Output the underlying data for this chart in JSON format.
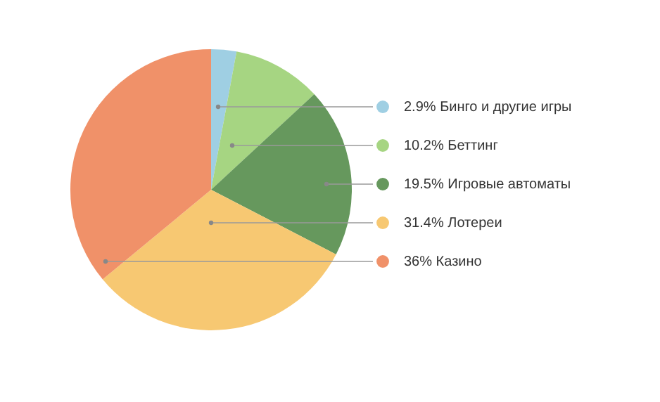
{
  "chart_data": {
    "type": "pie",
    "categories": [
      "Бинго и другие игры",
      "Беттинг",
      "Игровые автоматы",
      "Лотереи",
      "Казино"
    ],
    "values": [
      2.9,
      10.2,
      19.5,
      31.4,
      36
    ],
    "value_labels": [
      "2.9%",
      "10.2%",
      "19.5%",
      "31.4%",
      "36%"
    ],
    "colors": [
      "#9fcfe3",
      "#a6d582",
      "#66985d",
      "#f7c872",
      "#f09169"
    ],
    "legend": "right"
  }
}
